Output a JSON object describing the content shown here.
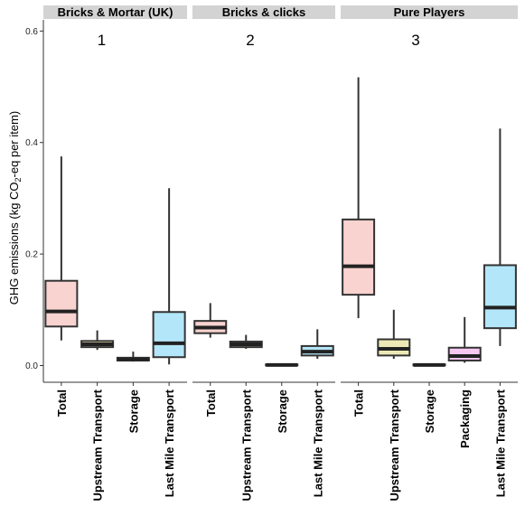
{
  "chart_data": {
    "type": "boxplot",
    "ylabel_prefix": "GHG emissions (kg CO",
    "ylabel_sub": "2",
    "ylabel_suffix": "-eq per item)",
    "ylim": [
      -0.03,
      0.62
    ],
    "yticks": [
      "0.0",
      "0.2",
      "0.4",
      "0.6"
    ],
    "ytick_values": [
      0,
      0.2,
      0.4,
      0.6
    ],
    "legend": "none",
    "colors": {
      "Total": "#f9d3d0",
      "Upstream Transport": "#ece9b6",
      "Storage": "#c8c8c8",
      "Packaging": "#f6c8f2",
      "Last Mile Transport": "#b3e6f8"
    },
    "panels": [
      {
        "title": "Bricks & Mortar (UK)",
        "number": "1",
        "boxes": [
          {
            "category": "Total",
            "min": 0.045,
            "q1": 0.07,
            "median": 0.097,
            "q3": 0.152,
            "max": 0.375
          },
          {
            "category": "Upstream Transport",
            "min": 0.028,
            "q1": 0.033,
            "median": 0.038,
            "q3": 0.044,
            "max": 0.063
          },
          {
            "category": "Storage",
            "min": 0.007,
            "q1": 0.009,
            "median": 0.011,
            "q3": 0.014,
            "max": 0.025
          },
          {
            "category": "Last Mile Transport",
            "min": 0.002,
            "q1": 0.015,
            "median": 0.04,
            "q3": 0.096,
            "max": 0.318
          }
        ]
      },
      {
        "title": "Bricks & clicks",
        "number": "2",
        "boxes": [
          {
            "category": "Total",
            "min": 0.05,
            "q1": 0.058,
            "median": 0.068,
            "q3": 0.08,
            "max": 0.112
          },
          {
            "category": "Upstream Transport",
            "min": 0.03,
            "q1": 0.033,
            "median": 0.038,
            "q3": 0.043,
            "max": 0.055
          },
          {
            "category": "Storage",
            "min": 0.0,
            "q1": 0.0005,
            "median": 0.001,
            "q3": 0.002,
            "max": 0.003
          },
          {
            "category": "Last Mile Transport",
            "min": 0.012,
            "q1": 0.018,
            "median": 0.025,
            "q3": 0.035,
            "max": 0.065
          }
        ]
      },
      {
        "title": "Pure Players",
        "number": "3",
        "boxes": [
          {
            "category": "Total",
            "min": 0.085,
            "q1": 0.127,
            "median": 0.178,
            "q3": 0.262,
            "max": 0.517
          },
          {
            "category": "Upstream Transport",
            "min": 0.012,
            "q1": 0.018,
            "median": 0.03,
            "q3": 0.047,
            "max": 0.1
          },
          {
            "category": "Storage",
            "min": 0.0,
            "q1": 0.0005,
            "median": 0.001,
            "q3": 0.002,
            "max": 0.003
          },
          {
            "category": "Packaging",
            "min": 0.005,
            "q1": 0.009,
            "median": 0.017,
            "q3": 0.032,
            "max": 0.087
          },
          {
            "category": "Last Mile Transport",
            "min": 0.035,
            "q1": 0.067,
            "median": 0.104,
            "q3": 0.18,
            "max": 0.425
          }
        ]
      }
    ]
  }
}
